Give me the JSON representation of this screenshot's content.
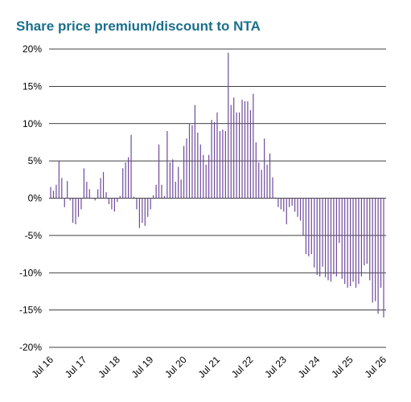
{
  "chart_data": {
    "type": "bar",
    "title": "Share price premium/discount to NTA",
    "categories": [
      "Jul 16",
      null,
      null,
      null,
      null,
      null,
      null,
      null,
      null,
      null,
      null,
      null,
      "Jul 17",
      null,
      null,
      null,
      null,
      null,
      null,
      null,
      null,
      null,
      null,
      null,
      "Jul 18",
      null,
      null,
      null,
      null,
      null,
      null,
      null,
      null,
      null,
      null,
      null,
      "Jul 19",
      null,
      null,
      null,
      null,
      null,
      null,
      null,
      null,
      null,
      null,
      null,
      "Jul 20",
      null,
      null,
      null,
      null,
      null,
      null,
      null,
      null,
      null,
      null,
      null,
      "Jul 21",
      null,
      null,
      null,
      null,
      null,
      null,
      null,
      null,
      null,
      null,
      null,
      "Jul 22",
      null,
      null,
      null,
      null,
      null,
      null,
      null,
      null,
      null,
      null,
      null,
      "Jul 23",
      null,
      null,
      null,
      null,
      null,
      null,
      null,
      null,
      null,
      null,
      null,
      "Jul 24",
      null,
      null,
      null,
      null,
      null,
      null,
      null,
      null,
      null,
      null,
      null,
      "Jul 25",
      null,
      null,
      null,
      null,
      null,
      null,
      null,
      null,
      null,
      null,
      null,
      "Jul 26"
    ],
    "values": [
      1.5,
      1,
      1.8,
      5,
      2.7,
      -1.2,
      2.3,
      -0.3,
      -3.3,
      -3.5,
      -2.5,
      -1.5,
      4,
      2.2,
      1.2,
      0,
      -0.3,
      1.2,
      2.7,
      3.5,
      0.8,
      -0.8,
      -1.5,
      -1.8,
      -0.5,
      0.3,
      4,
      4.8,
      5.5,
      8.5,
      0.2,
      -1.5,
      -4,
      -3.3,
      -3.7,
      -2.5,
      -1.5,
      0.4,
      1.8,
      7.2,
      1.8,
      0.3,
      9,
      4.8,
      5.2,
      2.2,
      4.2,
      2.5,
      7,
      8,
      10,
      9.8,
      12.5,
      8.8,
      7.2,
      5.8,
      4.5,
      5.8,
      10.5,
      10.2,
      11.5,
      9,
      9.2,
      9,
      19.5,
      12.5,
      13.5,
      11.5,
      11.5,
      13.2,
      13,
      13,
      11.8,
      14,
      7.5,
      4.8,
      3.8,
      8,
      4.5,
      6,
      2.8,
      0.1,
      -1.2,
      -1.5,
      -1.8,
      -3.5,
      -1.2,
      -1,
      -1.8,
      -2.5,
      -3,
      -5,
      -7.5,
      -7.8,
      -7.5,
      -9.3,
      -10.3,
      -10.5,
      -9.2,
      -10.6,
      -11,
      -11.2,
      -10.2,
      -10.5,
      -6,
      -10.8,
      -11.5,
      -12,
      -11.8,
      -11.2,
      -12,
      -11.5,
      -10.5,
      -9,
      -8.8,
      -11,
      -14,
      -13.8,
      -15.5,
      -12,
      -16
    ],
    "color": "#6f4a9c",
    "ylim": [
      -20,
      20
    ],
    "yticks": [
      {
        "value": -20,
        "label": "-20%"
      },
      {
        "value": -15,
        "label": "-15%"
      },
      {
        "value": -10,
        "label": "-10%"
      },
      {
        "value": -5,
        "label": "-5%"
      },
      {
        "value": 0,
        "label": "0%"
      },
      {
        "value": 5,
        "label": "5%"
      },
      {
        "value": 10,
        "label": "10%"
      },
      {
        "value": 15,
        "label": "15%"
      },
      {
        "value": 20,
        "label": "20%"
      }
    ],
    "grid": true
  }
}
